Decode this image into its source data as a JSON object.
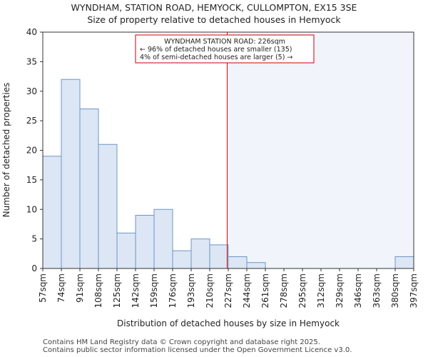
{
  "chart_data": {
    "type": "bar",
    "title": "WYNDHAM, STATION ROAD, HEMYOCK, CULLOMPTON, EX15 3SE",
    "subtitle": "Size of property relative to detached houses in Hemyock",
    "xlabel": "Distribution of detached houses by size in Hemyock",
    "ylabel": "Number of detached properties",
    "ylim": [
      0,
      40
    ],
    "yticks": [
      0,
      5,
      10,
      15,
      20,
      25,
      30,
      35,
      40
    ],
    "bin_edges": [
      57,
      74,
      91,
      108,
      125,
      142,
      159,
      176,
      193,
      210,
      227,
      244,
      261,
      278,
      295,
      312,
      329,
      346,
      363,
      380,
      397
    ],
    "tick_labels": [
      "57sqm",
      "74sqm",
      "91sqm",
      "108sqm",
      "125sqm",
      "142sqm",
      "159sqm",
      "176sqm",
      "193sqm",
      "210sqm",
      "227sqm",
      "244sqm",
      "261sqm",
      "278sqm",
      "295sqm",
      "312sqm",
      "329sqm",
      "346sqm",
      "363sqm",
      "380sqm",
      "397sqm"
    ],
    "values": [
      19,
      32,
      27,
      21,
      6,
      9,
      10,
      3,
      5,
      4,
      2,
      1,
      0,
      0,
      0,
      0,
      0,
      0,
      0,
      2
    ],
    "marker_value": 226,
    "annotation": {
      "line1": "WYNDHAM STATION ROAD: 226sqm",
      "line2": "← 96% of detached houses are smaller (135)",
      "line3": "4% of semi-detached houses are larger (5) →"
    },
    "colors": {
      "bar_fill": "#dce6f5",
      "bar_stroke": "#6f95c6",
      "marker": "#cc0000",
      "shade": "#f2f4fc"
    }
  },
  "footer": {
    "line1": "Contains HM Land Registry data © Crown copyright and database right 2025.",
    "line2": "Contains public sector information licensed under the Open Government Licence v3.0."
  }
}
